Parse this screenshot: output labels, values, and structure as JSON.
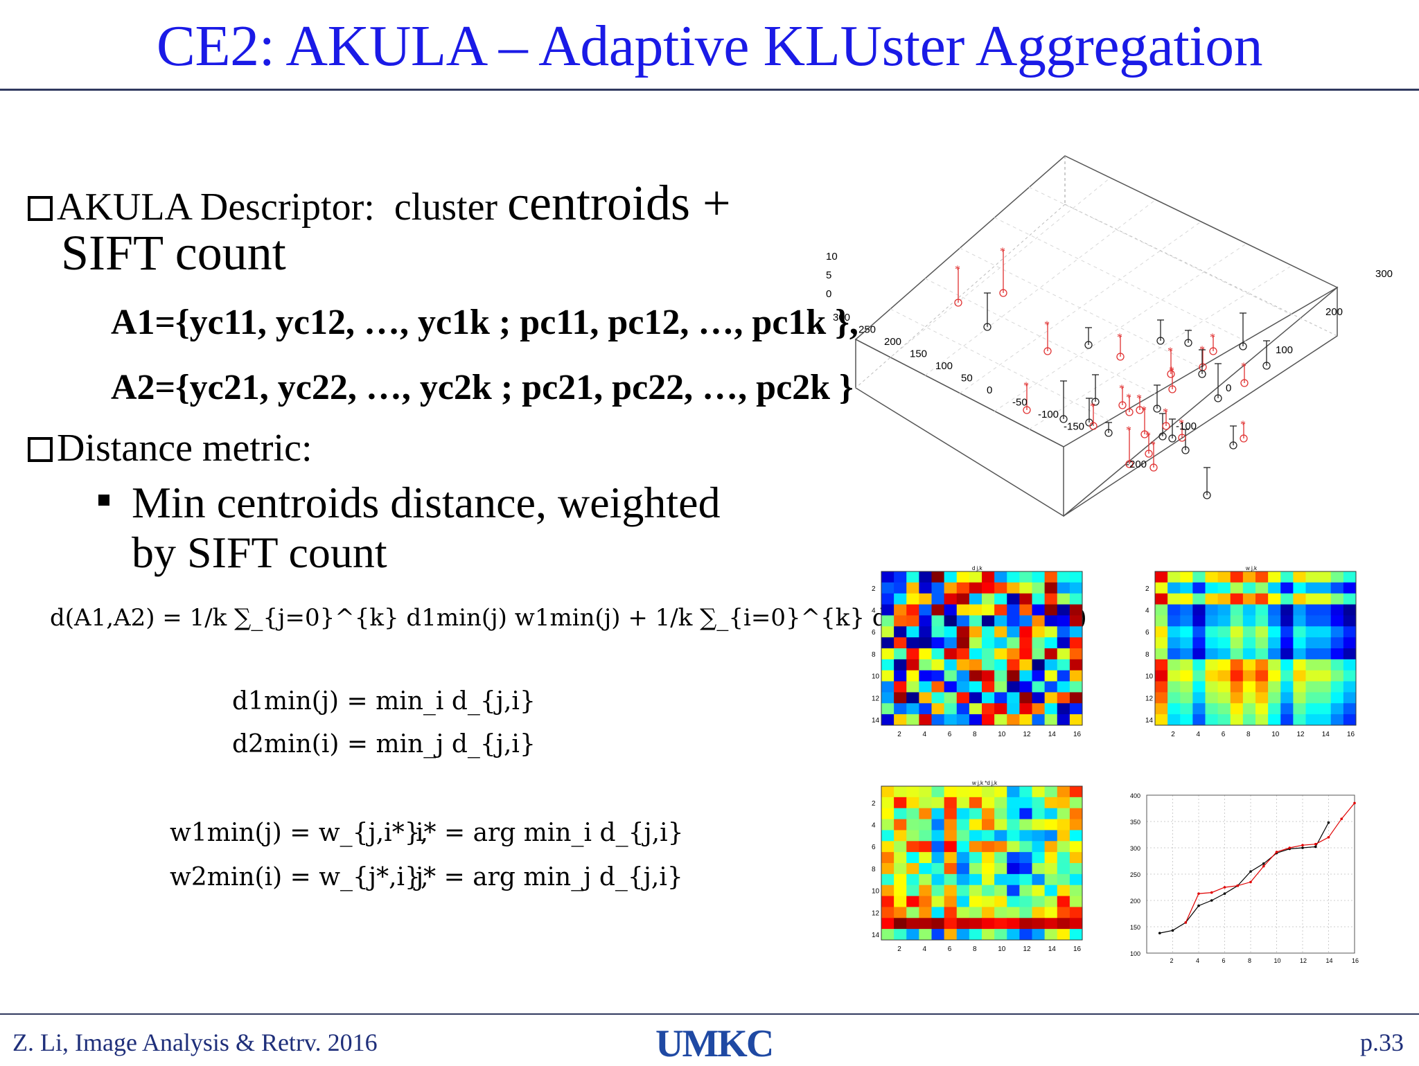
{
  "title": "CE2: AKULA – Adaptive  KLUster Aggregation",
  "bullet1": {
    "prefix": "AKULA Descriptor:",
    "mid": "cluster",
    "strong": "centroids +",
    "line2": "SIFT count"
  },
  "setA1": "A1={yc11, yc12, …, yc1k ; pc11, pc12, …, pc1k },",
  "setA2": "A2={yc21, yc22, …, yc2k ; pc21, pc22, …, pc2k }",
  "bullet2": "Distance metric:",
  "sub_bullet": {
    "line1": "Min centroids distance, weighted",
    "line2": "by SIFT count"
  },
  "equations": {
    "d": "d(A1,A2) = 1/k ∑_{j=0}^{k} d1min(j) w1min(j) + 1/k ∑_{i=0}^{k} d2min(i) w2min(i)",
    "dmin1": "d1min(j) = min_i d_{j,i}",
    "dmin2": "d2min(i) = min_j d_{j,i}",
    "wmin1": "w1min(j) = w_{j,i*},",
    "argmin1": "i* = arg min_i d_{j,i}",
    "wmin2": "w2min(i) = w_{j*,i},",
    "argmin2": "j* = arg min_j d_{j,i}"
  },
  "footer": {
    "left": "Z. Li, Image Analysis & Retrv. 2016",
    "logo": "UMKC",
    "page": "p.33"
  },
  "plot3d": {
    "z_ticks": [
      "10",
      "5",
      "0"
    ],
    "x_ticks": [
      "300",
      "250",
      "200",
      "150",
      "100",
      "50",
      "0",
      "-50",
      "-100",
      "-150"
    ],
    "y_ticks": [
      "300",
      "200",
      "100",
      "0",
      "-100",
      "-200"
    ]
  },
  "heatmaps": [
    {
      "title": "d j,k",
      "x_ticks": [
        "2",
        "4",
        "6",
        "8",
        "10",
        "12",
        "14",
        "16"
      ],
      "y_ticks": [
        "2",
        "4",
        "6",
        "8",
        "10",
        "12",
        "14"
      ]
    },
    {
      "title": "w j,k",
      "x_ticks": [
        "2",
        "4",
        "6",
        "8",
        "10",
        "12",
        "14",
        "16"
      ],
      "y_ticks": [
        "2",
        "4",
        "6",
        "8",
        "10",
        "12",
        "14"
      ]
    },
    {
      "title": "w j,k *d j,k",
      "x_ticks": [
        "2",
        "4",
        "6",
        "8",
        "10",
        "12",
        "14",
        "16"
      ],
      "y_ticks": [
        "2",
        "4",
        "6",
        "8",
        "10",
        "12",
        "14"
      ]
    }
  ],
  "chart_data": {
    "type": "line",
    "xlim": [
      0,
      16
    ],
    "ylim": [
      100,
      400
    ],
    "x_ticks": [
      "2",
      "4",
      "6",
      "8",
      "10",
      "12",
      "14",
      "16"
    ],
    "y_ticks": [
      "100",
      "150",
      "200",
      "250",
      "300",
      "350",
      "400"
    ],
    "grid": true,
    "series": [
      {
        "color": "#000000",
        "x": [
          1,
          2,
          3,
          4,
          5,
          6,
          7,
          8,
          9,
          10,
          11,
          12,
          13,
          14
        ],
        "values": [
          138,
          143,
          158,
          190,
          200,
          213,
          228,
          255,
          270,
          290,
          298,
          300,
          302,
          348
        ]
      },
      {
        "color": "#e00000",
        "x": [
          3,
          4,
          5,
          6,
          7,
          8,
          9,
          10,
          11,
          12,
          13,
          14,
          15,
          16
        ],
        "values": [
          158,
          213,
          215,
          225,
          228,
          235,
          265,
          292,
          300,
          305,
          307,
          320,
          355,
          385
        ]
      }
    ]
  }
}
